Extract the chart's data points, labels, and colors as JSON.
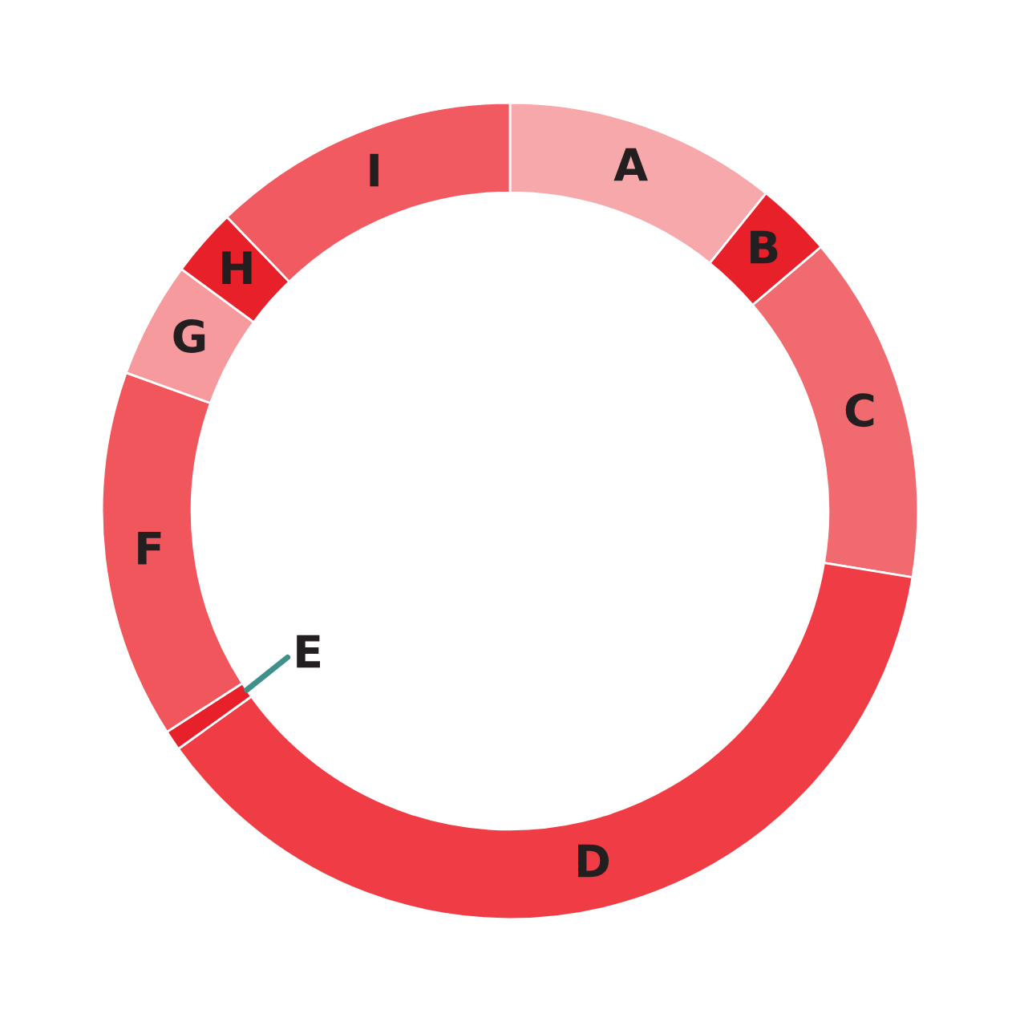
{
  "chart_data": {
    "type": "donut",
    "categories": [
      "A",
      "B",
      "C",
      "D",
      "E",
      "F",
      "G",
      "H",
      "I"
    ],
    "values": [
      10.8,
      3.0,
      13.8,
      37.5,
      0.8,
      14.6,
      4.6,
      2.7,
      12.2
    ],
    "colors": [
      "#f7a8ab",
      "#e8202a",
      "#f06a70",
      "#f03c44",
      "#e8202a",
      "#f0565c",
      "#f79a9e",
      "#e8202a",
      "#f05a60"
    ]
  }
}
